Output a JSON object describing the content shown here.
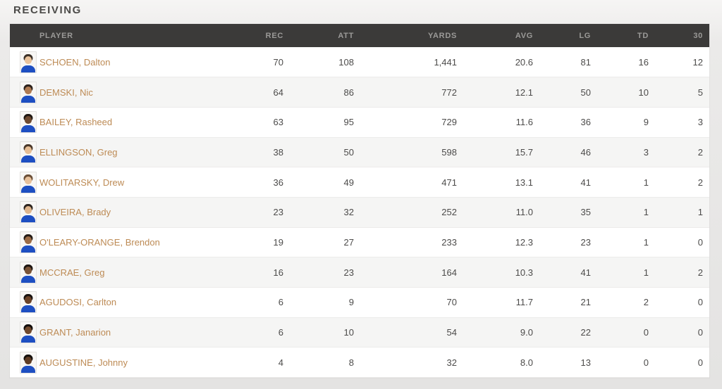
{
  "page": {
    "title": "RECEIVING"
  },
  "theme": {
    "header_bg": "#3b3a39",
    "header_text": "#9b9a98",
    "row_bg": "#ffffff",
    "row_alt_bg": "#f5f5f4",
    "row_border": "#ecebea",
    "player_name_color": "#bd8b55",
    "stat_color": "#4c4b4a",
    "jersey_color": "#1e4fc2"
  },
  "table": {
    "columns": [
      {
        "key": "photo",
        "label": ""
      },
      {
        "key": "player",
        "label": "PLAYER"
      },
      {
        "key": "rec",
        "label": "REC"
      },
      {
        "key": "att",
        "label": "ATT"
      },
      {
        "key": "yards",
        "label": "YARDS"
      },
      {
        "key": "avg",
        "label": "AVG"
      },
      {
        "key": "lg",
        "label": "LG"
      },
      {
        "key": "td",
        "label": "TD"
      },
      {
        "key": "thirty",
        "label": "30"
      }
    ],
    "players": [
      {
        "name": "SCHOEN, Dalton",
        "rec": "70",
        "att": "108",
        "yards": "1,441",
        "avg": "20.6",
        "lg": "81",
        "td": "16",
        "thirty": "12",
        "avatar": {
          "skin": "#e9c29b",
          "hair": "#3c3128"
        }
      },
      {
        "name": "DEMSKI, Nic",
        "rec": "64",
        "att": "86",
        "yards": "772",
        "avg": "12.1",
        "lg": "50",
        "td": "10",
        "thirty": "5",
        "avatar": {
          "skin": "#b07b52",
          "hair": "#2b211b"
        }
      },
      {
        "name": "BAILEY, Rasheed",
        "rec": "63",
        "att": "95",
        "yards": "729",
        "avg": "11.6",
        "lg": "36",
        "td": "9",
        "thirty": "3",
        "avatar": {
          "skin": "#6f4a30",
          "hair": "#1f1712"
        }
      },
      {
        "name": "ELLINGSON, Greg",
        "rec": "38",
        "att": "50",
        "yards": "598",
        "avg": "15.7",
        "lg": "46",
        "td": "3",
        "thirty": "2",
        "avatar": {
          "skin": "#e6bd94",
          "hair": "#4a382a"
        }
      },
      {
        "name": "WOLITARSKY, Drew",
        "rec": "36",
        "att": "49",
        "yards": "471",
        "avg": "13.1",
        "lg": "41",
        "td": "1",
        "thirty": "2",
        "avatar": {
          "skin": "#e7c09a",
          "hair": "#6b4f37"
        }
      },
      {
        "name": "OLIVEIRA, Brady",
        "rec": "23",
        "att": "32",
        "yards": "252",
        "avg": "11.0",
        "lg": "35",
        "td": "1",
        "thirty": "1",
        "avatar": {
          "skin": "#dfb58c",
          "hair": "#2e2620"
        }
      },
      {
        "name": "O'LEARY-ORANGE, Brendon",
        "rec": "19",
        "att": "27",
        "yards": "233",
        "avg": "12.3",
        "lg": "23",
        "td": "1",
        "thirty": "0",
        "avatar": {
          "skin": "#9c6b45",
          "hair": "#241b15"
        }
      },
      {
        "name": "MCCRAE, Greg",
        "rec": "16",
        "att": "23",
        "yards": "164",
        "avg": "10.3",
        "lg": "41",
        "td": "1",
        "thirty": "2",
        "avatar": {
          "skin": "#7a5336",
          "hair": "#1d1511"
        }
      },
      {
        "name": "AGUDOSI, Carlton",
        "rec": "6",
        "att": "9",
        "yards": "70",
        "avg": "11.7",
        "lg": "21",
        "td": "2",
        "thirty": "0",
        "avatar": {
          "skin": "#6b4227",
          "hair": "#181210"
        }
      },
      {
        "name": "GRANT, Janarion",
        "rec": "6",
        "att": "10",
        "yards": "54",
        "avg": "9.0",
        "lg": "22",
        "td": "0",
        "thirty": "0",
        "avatar": {
          "skin": "#71492c",
          "hair": "#120d0b"
        }
      },
      {
        "name": "AUGUSTINE, Johnny",
        "rec": "4",
        "att": "8",
        "yards": "32",
        "avg": "8.0",
        "lg": "13",
        "td": "0",
        "thirty": "0",
        "avatar": {
          "skin": "#5f3c24",
          "hair": "#15100d"
        }
      }
    ]
  }
}
